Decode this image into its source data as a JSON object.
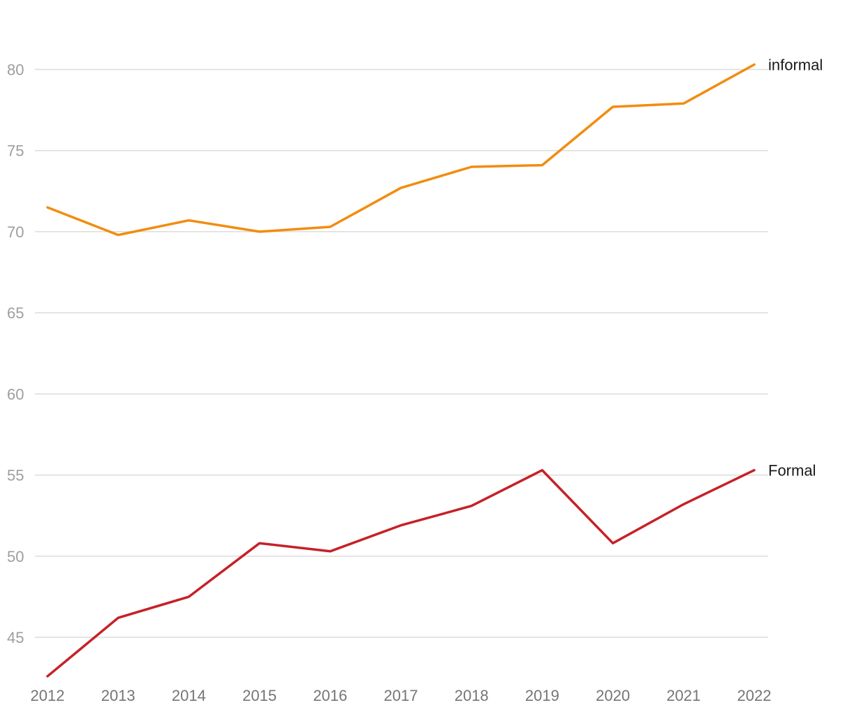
{
  "chart_data": {
    "type": "line",
    "title": "",
    "xlabel": "",
    "ylabel": "",
    "x": [
      2012,
      2013,
      2014,
      2015,
      2016,
      2017,
      2018,
      2019,
      2020,
      2021,
      2022
    ],
    "ylim": [
      42.5,
      82.5
    ],
    "yticks": [
      45,
      50,
      55,
      60,
      65,
      70,
      75,
      80
    ],
    "grid": true,
    "series": [
      {
        "name": "informal",
        "color": "#f28c0f",
        "values": [
          71.5,
          69.8,
          70.7,
          70.0,
          70.3,
          72.7,
          74.0,
          74.1,
          77.7,
          77.9,
          80.3
        ]
      },
      {
        "name": "Formal",
        "color": "#c62127",
        "values": [
          42.6,
          46.2,
          47.5,
          50.8,
          50.3,
          51.9,
          53.1,
          55.3,
          50.8,
          53.2,
          55.3
        ]
      }
    ]
  }
}
